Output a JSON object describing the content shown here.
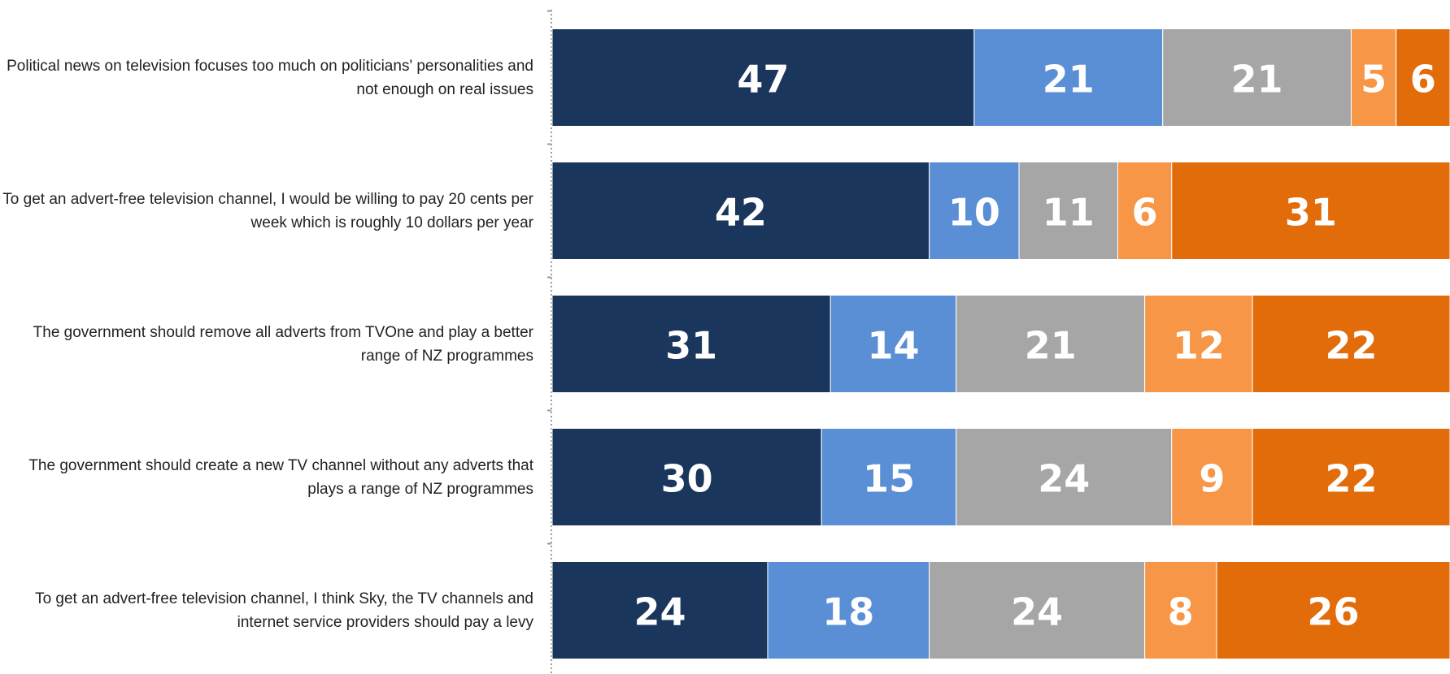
{
  "chart_data": {
    "type": "stacked-bar",
    "categories": [
      "Political news on television focuses too much on politicians' personalities and not enough on real issues",
      "To get an advert-free television channel, I would be willing to pay 20 cents per week which is roughly 10 dollars per year",
      "The government should remove all adverts from TVOne and play a better range of NZ programmes",
      "The government should create a new TV channel without any adverts that plays a range of NZ programmes",
      "To get an advert-free television channel, I think Sky, the TV channels and internet service providers should pay a levy"
    ],
    "series": [
      {
        "color": "#1a365d",
        "values": [
          47,
          42,
          31,
          30,
          24
        ]
      },
      {
        "color": "#5a8fd6",
        "values": [
          21,
          10,
          14,
          15,
          18
        ]
      },
      {
        "color": "#a6a6a6",
        "values": [
          21,
          11,
          21,
          24,
          24
        ]
      },
      {
        "color": "#f79646",
        "values": [
          5,
          6,
          12,
          9,
          8
        ]
      },
      {
        "color": "#e36c0a",
        "values": [
          6,
          31,
          22,
          22,
          26
        ]
      }
    ],
    "xlim": [
      0,
      100
    ]
  }
}
